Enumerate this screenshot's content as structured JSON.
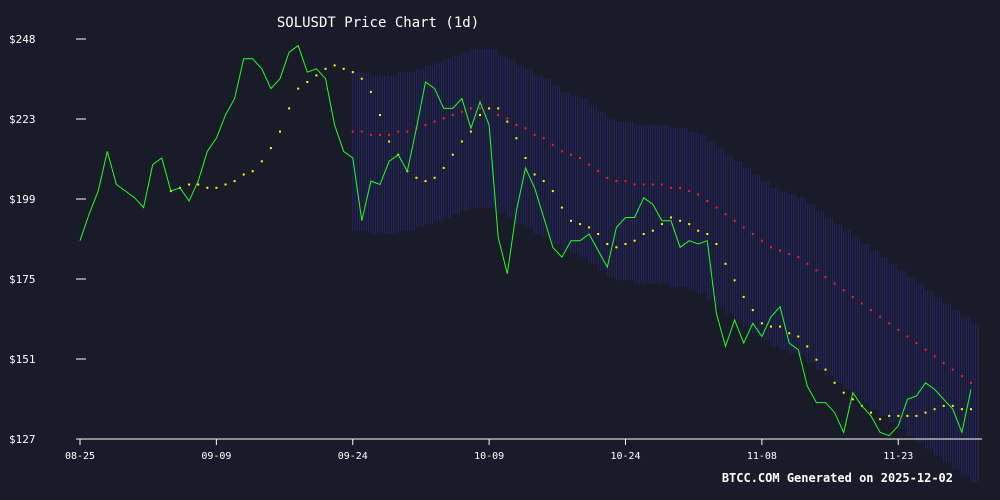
{
  "colors": {
    "background": "#191b28",
    "price_line": "#22ff22",
    "ma_short": "#ffff00",
    "ma_long": "#ff2020",
    "band": "#2a2c8c",
    "axis": "#ffffff"
  },
  "chart_data": {
    "type": "line",
    "title": "SOLUSDT Price Chart (1d)",
    "footer": "BTCC.COM Generated on 2025-12-02",
    "xlabel": "",
    "ylabel": "",
    "x_start": "2025-08-25",
    "x_ticks": [
      "08-25",
      "09-09",
      "09-24",
      "10-09",
      "10-24",
      "11-08",
      "11-23"
    ],
    "y_ticks": [
      "$248",
      "$223",
      "$199",
      "$175",
      "$151",
      "$127"
    ],
    "ylim": [
      127,
      248
    ],
    "grid": false,
    "series": [
      {
        "role": "price",
        "color": "#22ff22",
        "values": [
          187,
          195,
          202,
          214,
          204,
          202,
          200,
          197,
          210,
          212,
          202,
          203,
          199,
          205,
          214,
          218,
          225,
          230,
          242,
          242,
          239,
          233,
          236,
          244,
          246,
          238,
          239,
          236,
          222,
          214,
          212,
          193,
          205,
          204,
          211,
          213,
          208,
          221,
          235,
          233,
          227,
          227,
          230,
          221,
          229,
          222,
          188,
          177,
          196,
          209,
          203,
          194,
          185,
          182,
          187,
          187,
          189,
          184,
          179,
          191,
          194,
          194,
          200,
          198,
          193,
          193,
          185,
          187,
          186,
          187,
          165,
          155,
          163,
          156,
          162,
          158,
          164,
          167,
          156,
          154,
          143,
          138,
          138,
          135,
          129,
          141,
          137,
          134,
          129,
          128,
          131,
          139,
          140,
          144,
          142,
          139,
          136,
          129,
          142
        ]
      },
      {
        "role": "ma_short",
        "color": "#ffff00",
        "values": [
          null,
          null,
          null,
          null,
          null,
          null,
          null,
          null,
          null,
          null,
          202,
          203,
          204,
          204,
          203,
          203,
          204,
          205,
          207,
          208,
          211,
          215,
          220,
          227,
          233,
          235,
          237,
          239,
          240,
          239,
          238,
          236,
          232,
          225,
          217,
          213,
          208,
          206,
          205,
          206,
          209,
          213,
          217,
          220,
          225,
          227,
          227,
          223,
          218,
          212,
          207,
          205,
          202,
          197,
          193,
          192,
          191,
          189,
          186,
          185,
          186,
          187,
          189,
          190,
          192,
          194,
          193,
          192,
          190,
          189,
          186,
          180,
          175,
          170,
          166,
          162,
          161,
          161,
          159,
          158,
          155,
          151,
          148,
          144,
          141,
          139,
          137,
          135,
          133,
          134,
          134,
          134,
          134,
          135,
          136,
          137,
          137,
          136,
          136
        ]
      },
      {
        "role": "ma_long",
        "color": "#ff2020",
        "values": [
          null,
          null,
          null,
          null,
          null,
          null,
          null,
          null,
          null,
          null,
          null,
          null,
          null,
          null,
          null,
          null,
          null,
          null,
          null,
          null,
          null,
          null,
          null,
          null,
          null,
          null,
          null,
          null,
          null,
          null,
          null,
          null,
          null,
          null,
          null,
          null,
          null,
          null,
          null,
          null,
          null,
          null,
          null,
          null,
          null,
          null,
          null,
          null,
          null,
          null,
          null,
          null,
          null,
          null,
          null,
          null,
          null,
          null,
          null,
          null,
          null,
          null,
          null,
          null,
          null,
          null,
          null,
          null,
          null,
          null,
          null,
          null,
          null,
          null,
          null,
          null,
          null,
          null,
          null,
          null,
          null,
          null,
          null,
          null,
          null,
          null,
          null,
          null,
          null,
          null,
          null,
          null,
          null,
          null,
          null,
          null,
          null,
          null,
          null
        ]
      }
    ]
  }
}
